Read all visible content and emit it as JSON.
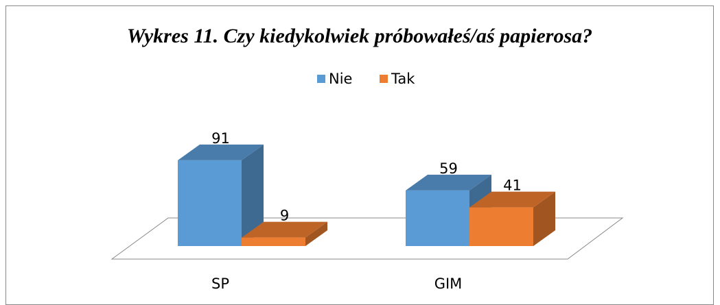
{
  "chart_data": {
    "type": "bar",
    "title": "Wykres 11. Czy kiedykolwiek próbowałeś/aś papierosa?",
    "categories": [
      "SP",
      "GIM"
    ],
    "series": [
      {
        "name": "Nie",
        "color": "#5b9bd5",
        "values": [
          91,
          59
        ]
      },
      {
        "name": "Tak",
        "color": "#ed7d31",
        "values": [
          9,
          41
        ]
      }
    ],
    "legend": "top"
  }
}
